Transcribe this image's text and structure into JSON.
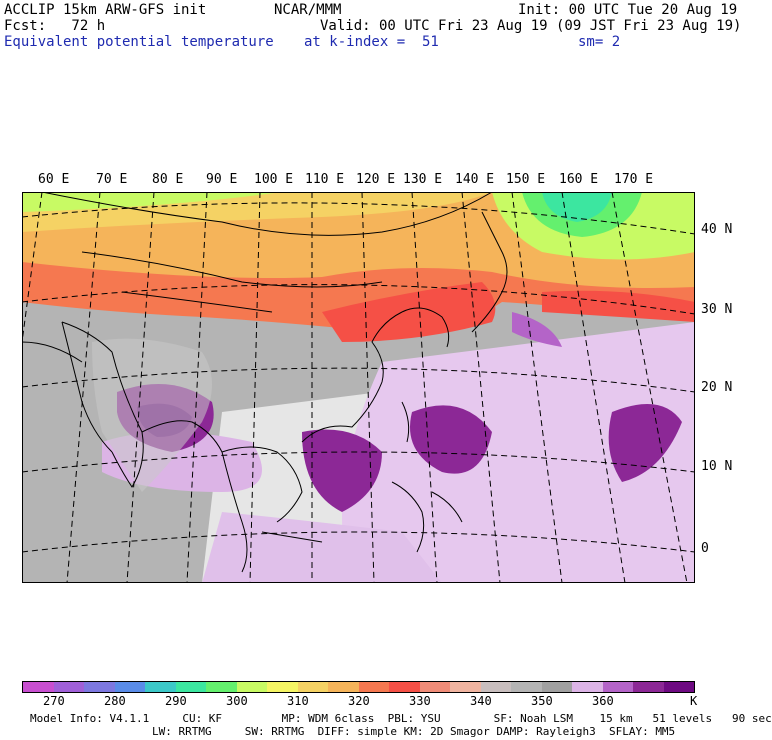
{
  "header": {
    "line1_left": "ACCLIP 15km ARW-GFS init",
    "line1_center": "NCAR/MMM",
    "line1_right": "Init: 00 UTC Tue 20 Aug 19",
    "line2_left": "Fcst:   72 h",
    "line2_right": "Valid: 00 UTC Fri 23 Aug 19 (09 JST Fri 23 Aug 19)",
    "field_name": "Equivalent potential temperature",
    "field_level": "at k-index =  51",
    "smoothing": "sm= 2"
  },
  "map": {
    "longitude_labels": [
      "60 E",
      "70 E",
      "80 E",
      "90 E",
      "100 E",
      "110 E",
      "120 E",
      "130 E",
      "140 E",
      "150 E",
      "160 E",
      "170 E"
    ],
    "latitude_labels": [
      "40 N",
      "30 N",
      "20 N",
      "10 N",
      "0"
    ]
  },
  "colorbar": {
    "colors": [
      "#c84fd0",
      "#a060d8",
      "#7d78e0",
      "#5a8ce8",
      "#3cc8c8",
      "#3ce6a0",
      "#64f06e",
      "#c8fa64",
      "#f5f564",
      "#f5d264",
      "#f5b45a",
      "#f57850",
      "#f55046",
      "#f08c78",
      "#f0b4a0",
      "#c8bebe",
      "#b4b4b4",
      "#a0a0a0",
      "#dcb4e6",
      "#b464c8",
      "#8c2896",
      "#6e0a82"
    ],
    "tick_labels": [
      "270",
      "280",
      "290",
      "300",
      "310",
      "320",
      "330",
      "340",
      "350",
      "360"
    ],
    "unit": "K"
  },
  "footer": {
    "line1": "Model Info: V4.1.1     CU: KF         MP: WDM 6class  PBL: YSU        SF: Noah LSM    15 km   51 levels   90 sec",
    "line2": "LW: RRTMG     SW: RRTMG  DIFF: simple KM: 2D Smagor DAMP: Rayleigh3  SFLAY: MM5"
  }
}
